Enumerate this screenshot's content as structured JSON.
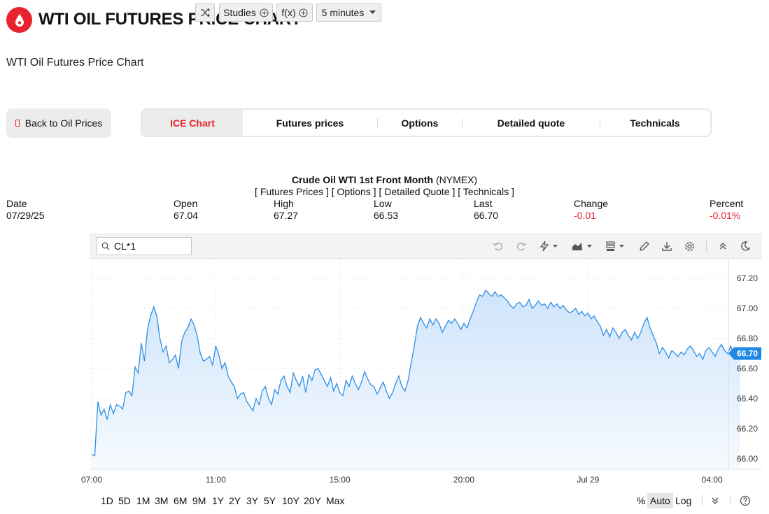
{
  "header": {
    "title": "WTI OIL FUTURES PRICE CHART",
    "subtitle": "WTI Oil Futures Price Chart"
  },
  "back_button": {
    "label": "Back to Oil Prices"
  },
  "tabs": [
    {
      "label": "ICE Chart",
      "active": true
    },
    {
      "label": "Futures prices",
      "active": false
    },
    {
      "label": "Options",
      "active": false
    },
    {
      "label": "Detailed quote",
      "active": false
    },
    {
      "label": "Technicals",
      "active": false
    }
  ],
  "quote": {
    "title_bold": "Crude Oil WTI 1st Front Month",
    "title_suffix": " (NYMEX)",
    "links": "[ Futures Prices ] [ Options ] [ Detailed Quote ] [ Technicals ]",
    "date_label": "Date",
    "date": "07/29/25",
    "open_label": "Open",
    "open": "67.04",
    "high_label": "High",
    "high": "67.27",
    "low_label": "Low",
    "low": "66.53",
    "last_label": "Last",
    "last": "66.70",
    "change_label": "Change",
    "change": "-0.01",
    "percent_label": "Percent",
    "percent": "-0.01%"
  },
  "toolbar": {
    "symbol": "CL*1",
    "studies_label": "Studies",
    "fx_label": "f(x)",
    "interval_label": "5 minutes"
  },
  "ranges": {
    "items": [
      "1D",
      "5D",
      "1M",
      "3M",
      "6M",
      "9M",
      "1Y",
      "2Y",
      "3Y",
      "5Y",
      "10Y",
      "20Y",
      "Max"
    ],
    "percent_label": "%",
    "auto_label": "Auto",
    "log_label": "Log"
  },
  "colors": {
    "brand_red": "#e8232d",
    "line_blue": "#2f8fe6",
    "area_fill_top": "#cfe4fb",
    "last_badge": "#1e88e5"
  },
  "chart_data": {
    "type": "area",
    "x_tick_labels": [
      "07:00",
      "11:00",
      "15:00",
      "20:00",
      "Jul 29",
      "04:00"
    ],
    "y_tick_labels": [
      "66.00",
      "66.20",
      "66.40",
      "66.60",
      "66.80",
      "67.00",
      "67.20"
    ],
    "ylim": [
      65.93,
      67.33
    ],
    "last_value_label": "66.70",
    "last_value": 66.7,
    "grid": true,
    "x_index_range": [
      0,
      203
    ],
    "x_ticks_index": [
      0,
      40,
      80,
      120,
      160,
      200
    ],
    "series": [
      {
        "values": [
          66.03,
          66.02,
          66.38,
          66.29,
          66.33,
          66.26,
          66.36,
          66.3,
          66.36,
          66.35,
          66.33,
          66.44,
          66.45,
          66.42,
          66.61,
          66.57,
          66.77,
          66.65,
          66.86,
          66.95,
          67.01,
          66.95,
          66.8,
          66.71,
          66.75,
          66.64,
          66.66,
          66.69,
          66.6,
          66.78,
          66.84,
          66.87,
          66.93,
          66.89,
          66.82,
          66.7,
          66.65,
          66.66,
          66.68,
          66.62,
          66.75,
          66.69,
          66.6,
          66.64,
          66.55,
          66.51,
          66.48,
          66.4,
          66.43,
          66.44,
          66.38,
          66.35,
          66.32,
          66.4,
          66.36,
          66.45,
          66.48,
          66.4,
          66.36,
          66.46,
          66.43,
          66.52,
          66.55,
          66.48,
          66.44,
          66.57,
          66.52,
          66.48,
          66.55,
          66.44,
          66.56,
          66.52,
          66.59,
          66.6,
          66.56,
          66.52,
          66.48,
          66.54,
          66.45,
          66.5,
          66.44,
          66.42,
          66.52,
          66.48,
          66.55,
          66.5,
          66.46,
          66.51,
          66.58,
          66.53,
          66.49,
          66.48,
          66.43,
          66.47,
          66.51,
          66.45,
          66.4,
          66.44,
          66.5,
          66.55,
          66.48,
          66.45,
          66.52,
          66.64,
          66.75,
          66.88,
          66.94,
          66.9,
          66.87,
          66.93,
          66.89,
          66.93,
          66.9,
          66.84,
          66.88,
          66.92,
          66.9,
          66.93,
          66.9,
          66.86,
          66.9,
          66.87,
          66.93,
          66.98,
          67.04,
          67.09,
          67.08,
          67.12,
          67.1,
          67.08,
          67.11,
          67.08,
          67.09,
          67.07,
          67.05,
          67.02,
          67.0,
          67.03,
          67.04,
          67.01,
          67.02,
          67.06,
          67.0,
          67.02,
          67.05,
          67.02,
          67.03,
          67.0,
          67.04,
          67.01,
          67.03,
          67.0,
          67.02,
          66.99,
          66.97,
          66.98,
          67.0,
          66.96,
          66.98,
          66.95,
          66.97,
          66.93,
          66.95,
          66.91,
          66.88,
          66.82,
          66.86,
          66.81,
          66.87,
          66.84,
          66.8,
          66.84,
          66.86,
          66.82,
          66.79,
          66.84,
          66.8,
          66.84,
          66.9,
          66.94,
          66.87,
          66.82,
          66.77,
          66.7,
          66.74,
          66.71,
          66.67,
          66.72,
          66.7,
          66.68,
          66.71,
          66.69,
          66.73,
          66.75,
          66.72,
          66.68,
          66.7,
          66.66,
          66.72,
          66.74,
          66.71,
          66.68,
          66.73,
          66.76,
          66.72,
          66.7,
          66.75,
          66.69,
          66.7,
          66.7
        ]
      }
    ]
  }
}
